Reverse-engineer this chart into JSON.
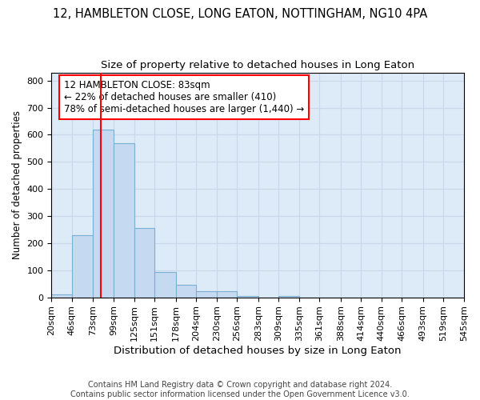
{
  "title_line1": "12, HAMBLETON CLOSE, LONG EATON, NOTTINGHAM, NG10 4PA",
  "title_line2": "Size of property relative to detached houses in Long Eaton",
  "xlabel": "Distribution of detached houses by size in Long Eaton",
  "ylabel": "Number of detached properties",
  "footer_line1": "Contains HM Land Registry data © Crown copyright and database right 2024.",
  "footer_line2": "Contains public sector information licensed under the Open Government Licence v3.0.",
  "annotation_line1": "12 HAMBLETON CLOSE: 83sqm",
  "annotation_line2": "← 22% of detached houses are smaller (410)",
  "annotation_line3": "78% of semi-detached houses are larger (1,440) →",
  "bar_edges": [
    20,
    46,
    73,
    99,
    125,
    151,
    178,
    204,
    230,
    256,
    283,
    309,
    335,
    361,
    388,
    414,
    440,
    466,
    493,
    519,
    545
  ],
  "bar_heights": [
    10,
    230,
    620,
    570,
    255,
    95,
    47,
    22,
    22,
    5,
    0,
    5,
    0,
    0,
    0,
    0,
    0,
    0,
    0,
    0
  ],
  "bar_color": "#c5d9f0",
  "bar_edgecolor": "#7bafd4",
  "red_line_x": 83,
  "ylim": [
    0,
    830
  ],
  "yticks": [
    0,
    100,
    200,
    300,
    400,
    500,
    600,
    700,
    800
  ],
  "grid_color": "#c8d8ea",
  "bg_color": "#ddeaf7",
  "annotation_box_color": "white",
  "annotation_box_edgecolor": "red",
  "red_line_color": "red",
  "title_fontsize": 10.5,
  "subtitle_fontsize": 9.5,
  "xlabel_fontsize": 9.5,
  "ylabel_fontsize": 8.5,
  "tick_fontsize": 8,
  "annotation_fontsize": 8.5,
  "footer_fontsize": 7
}
